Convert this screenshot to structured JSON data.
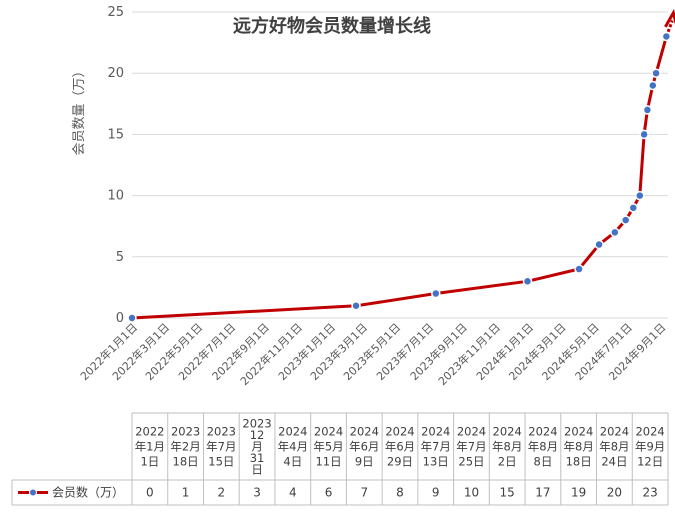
{
  "chart_data": {
    "type": "line",
    "title": "远方好物会员数量增长线",
    "ylabel": "会员数量（万）",
    "xlabel": "",
    "ylim": [
      0,
      25
    ],
    "yticks": [
      "0",
      "5",
      "10",
      "15",
      "20",
      "25"
    ],
    "grid": true,
    "series_color": "#c00000",
    "marker_color": "#4472c4",
    "x_axis_labels": [
      "2022年1月1日",
      "2022年3月1日",
      "2022年5月1日",
      "2022年7月1日",
      "2022年9月1日",
      "2022年11月1日",
      "2023年1月1日",
      "2023年3月1日",
      "2023年5月1日",
      "2023年7月1日",
      "2023年9月1日",
      "2023年11月1日",
      "2024年1月1日",
      "2024年3月1日",
      "2024年5月1日",
      "2024年7月1日",
      "2024年9月1日"
    ],
    "series": [
      {
        "name": "会员数（万）",
        "x": [
          "2022-01-01",
          "2023-02-18",
          "2023-07-15",
          "2023-12-31",
          "2024-04-04",
          "2024-05-11",
          "2024-06-09",
          "2024-06-29",
          "2024-07-13",
          "2024-07-25",
          "2024-08-02",
          "2024-08-08",
          "2024-08-18",
          "2024-08-24",
          "2024-09-12"
        ],
        "values": [
          0,
          1,
          2,
          3,
          4,
          6,
          7,
          8,
          9,
          10,
          15,
          17,
          19,
          20,
          23
        ]
      }
    ],
    "table": {
      "legend_label": "会员数（万）",
      "dates": [
        [
          "2022",
          "年1月",
          "1日"
        ],
        [
          "2023",
          "年2月",
          "18日"
        ],
        [
          "2023",
          "年7月",
          "15日"
        ],
        [
          "2023",
          "12",
          "月",
          "31",
          "日"
        ],
        [
          "2024",
          "年4月",
          "4日"
        ],
        [
          "2024",
          "年5月",
          "11日"
        ],
        [
          "2024",
          "年6月",
          "9日"
        ],
        [
          "2024",
          "年6月",
          "29日"
        ],
        [
          "2024",
          "年7月",
          "13日"
        ],
        [
          "2024",
          "年7月",
          "25日"
        ],
        [
          "2024",
          "年8月",
          "2日"
        ],
        [
          "2024",
          "年8月",
          "8日"
        ],
        [
          "2024",
          "年8月",
          "18日"
        ],
        [
          "2024",
          "年8月",
          "24日"
        ],
        [
          "2024",
          "年9月",
          "12日"
        ]
      ],
      "values": [
        "0",
        "1",
        "2",
        "3",
        "4",
        "6",
        "7",
        "8",
        "9",
        "10",
        "15",
        "17",
        "19",
        "20",
        "23"
      ]
    }
  }
}
